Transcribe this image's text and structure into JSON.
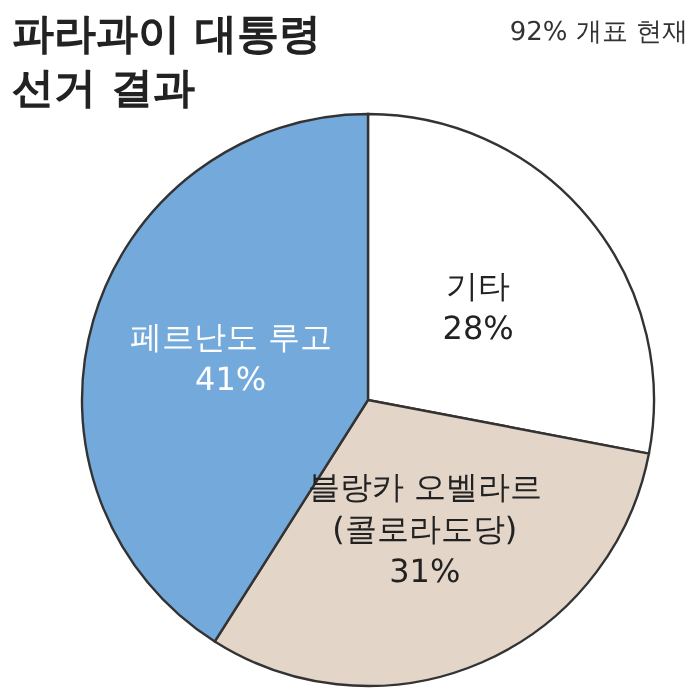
{
  "chart_data": {
    "type": "pie",
    "title": "파라과이 대통령\n선거 결과",
    "subtitle": "92% 개표 현재",
    "categories": [
      "기타",
      "블랑카 오벨라르\n(콜로라도당)",
      "페르난도 루고"
    ],
    "values": [
      28,
      31,
      41
    ],
    "colors": [
      "#ffffff",
      "#e3d5c8",
      "#74aadb"
    ],
    "value_labels": [
      "28%",
      "31%",
      "41%"
    ]
  }
}
